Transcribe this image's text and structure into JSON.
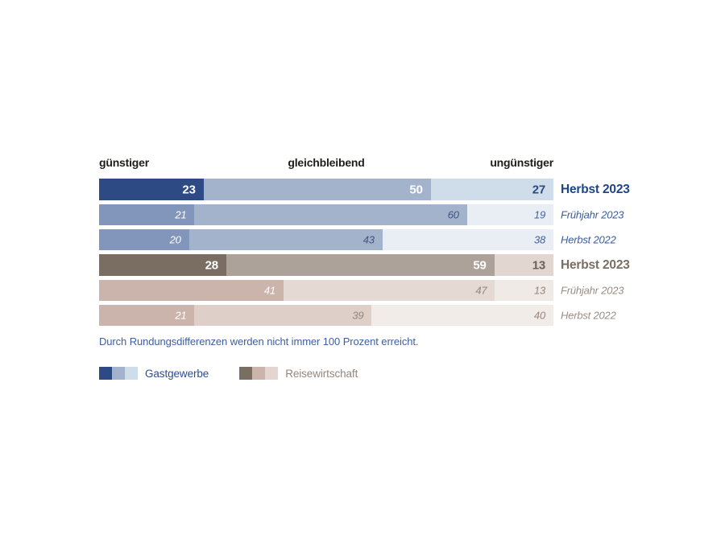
{
  "chart_data": {
    "type": "bar",
    "variant": "horizontal-stacked-100",
    "title": "",
    "column_headers": [
      "günstiger",
      "gleichbleibend",
      "ungünstiger"
    ],
    "xlim": [
      0,
      100
    ],
    "grid": false,
    "legend_position": "bottom-left",
    "footnote": "Durch Rundungsdifferenzen werden nicht immer 100 Prozent erreicht.",
    "rows": [
      {
        "group": "Gastgewerbe",
        "group_key": "gastgewerbe",
        "period_key": "herbst-2023",
        "label": "Herbst 2023",
        "values": [
          23,
          50,
          27
        ],
        "emphasized": true,
        "seg_colors": [
          "#2d4a84",
          "#a4b3cc",
          "#cfdcea"
        ],
        "val_colors": [
          "#ffffff",
          "#ffffff",
          "#2b4a86"
        ],
        "label_color": "#1e4687"
      },
      {
        "group": "Gastgewerbe",
        "group_key": "gastgewerbe",
        "period_key": "fruehjahr-2023",
        "label": "Frühjahr 2023",
        "values": [
          21,
          60,
          19
        ],
        "emphasized": false,
        "seg_colors": [
          "#8295ba",
          "#a4b3cc",
          "#e9eef5"
        ],
        "val_colors": [
          "#ffffff",
          "#3d5384",
          "#41639e"
        ],
        "label_color": "#3a5c9e"
      },
      {
        "group": "Gastgewerbe",
        "group_key": "gastgewerbe",
        "period_key": "herbst-2022",
        "label": "Herbst 2022",
        "values": [
          20,
          43,
          38
        ],
        "emphasized": false,
        "seg_colors": [
          "#8295ba",
          "#a4b3cc",
          "#e9eef5"
        ],
        "val_colors": [
          "#ffffff",
          "#3d5384",
          "#41639e"
        ],
        "label_color": "#3a5c9e"
      },
      {
        "group": "Reisewirtschaft",
        "group_key": "reisewirtschaft",
        "period_key": "herbst-2023",
        "label": "Herbst 2023",
        "values": [
          28,
          59,
          13
        ],
        "emphasized": true,
        "seg_colors": [
          "#7a6e63",
          "#ada29a",
          "#e2d6d0"
        ],
        "val_colors": [
          "#ffffff",
          "#ffffff",
          "#6e6156"
        ],
        "label_color": "#7a6d62"
      },
      {
        "group": "Reisewirtschaft",
        "group_key": "reisewirtschaft",
        "period_key": "fruehjahr-2023",
        "label": "Frühjahr 2023",
        "values": [
          41,
          47,
          13
        ],
        "emphasized": false,
        "seg_colors": [
          "#cab4ac",
          "#e4d9d3",
          "#f0eae6"
        ],
        "val_colors": [
          "#ffffff",
          "#94867d",
          "#94867d"
        ],
        "label_color": "#9b8d84"
      },
      {
        "group": "Reisewirtschaft",
        "group_key": "reisewirtschaft",
        "period_key": "herbst-2022",
        "label": "Herbst 2022",
        "values": [
          21,
          39,
          40
        ],
        "emphasized": false,
        "seg_colors": [
          "#cab4ac",
          "#decfc9",
          "#f2ece8"
        ],
        "val_colors": [
          "#ffffff",
          "#94867d",
          "#94867d"
        ],
        "label_color": "#9b8d84"
      }
    ],
    "legend": [
      {
        "key": "gastgewerbe",
        "label": "Gastgewerbe",
        "colors": [
          "#2d4a84",
          "#a4b3cc",
          "#cfdcea"
        ],
        "label_color": "#2b4d8f"
      },
      {
        "key": "reisewirtschaft",
        "label": "Reisewirtschaft",
        "colors": [
          "#7a6e63",
          "#cab4ac",
          "#e3d6d0"
        ],
        "label_color": "#94867d"
      }
    ],
    "colors": {
      "header-text": "#1d1d1b",
      "footnote-text": "#3c5fa0",
      "background": "#ffffff"
    }
  }
}
